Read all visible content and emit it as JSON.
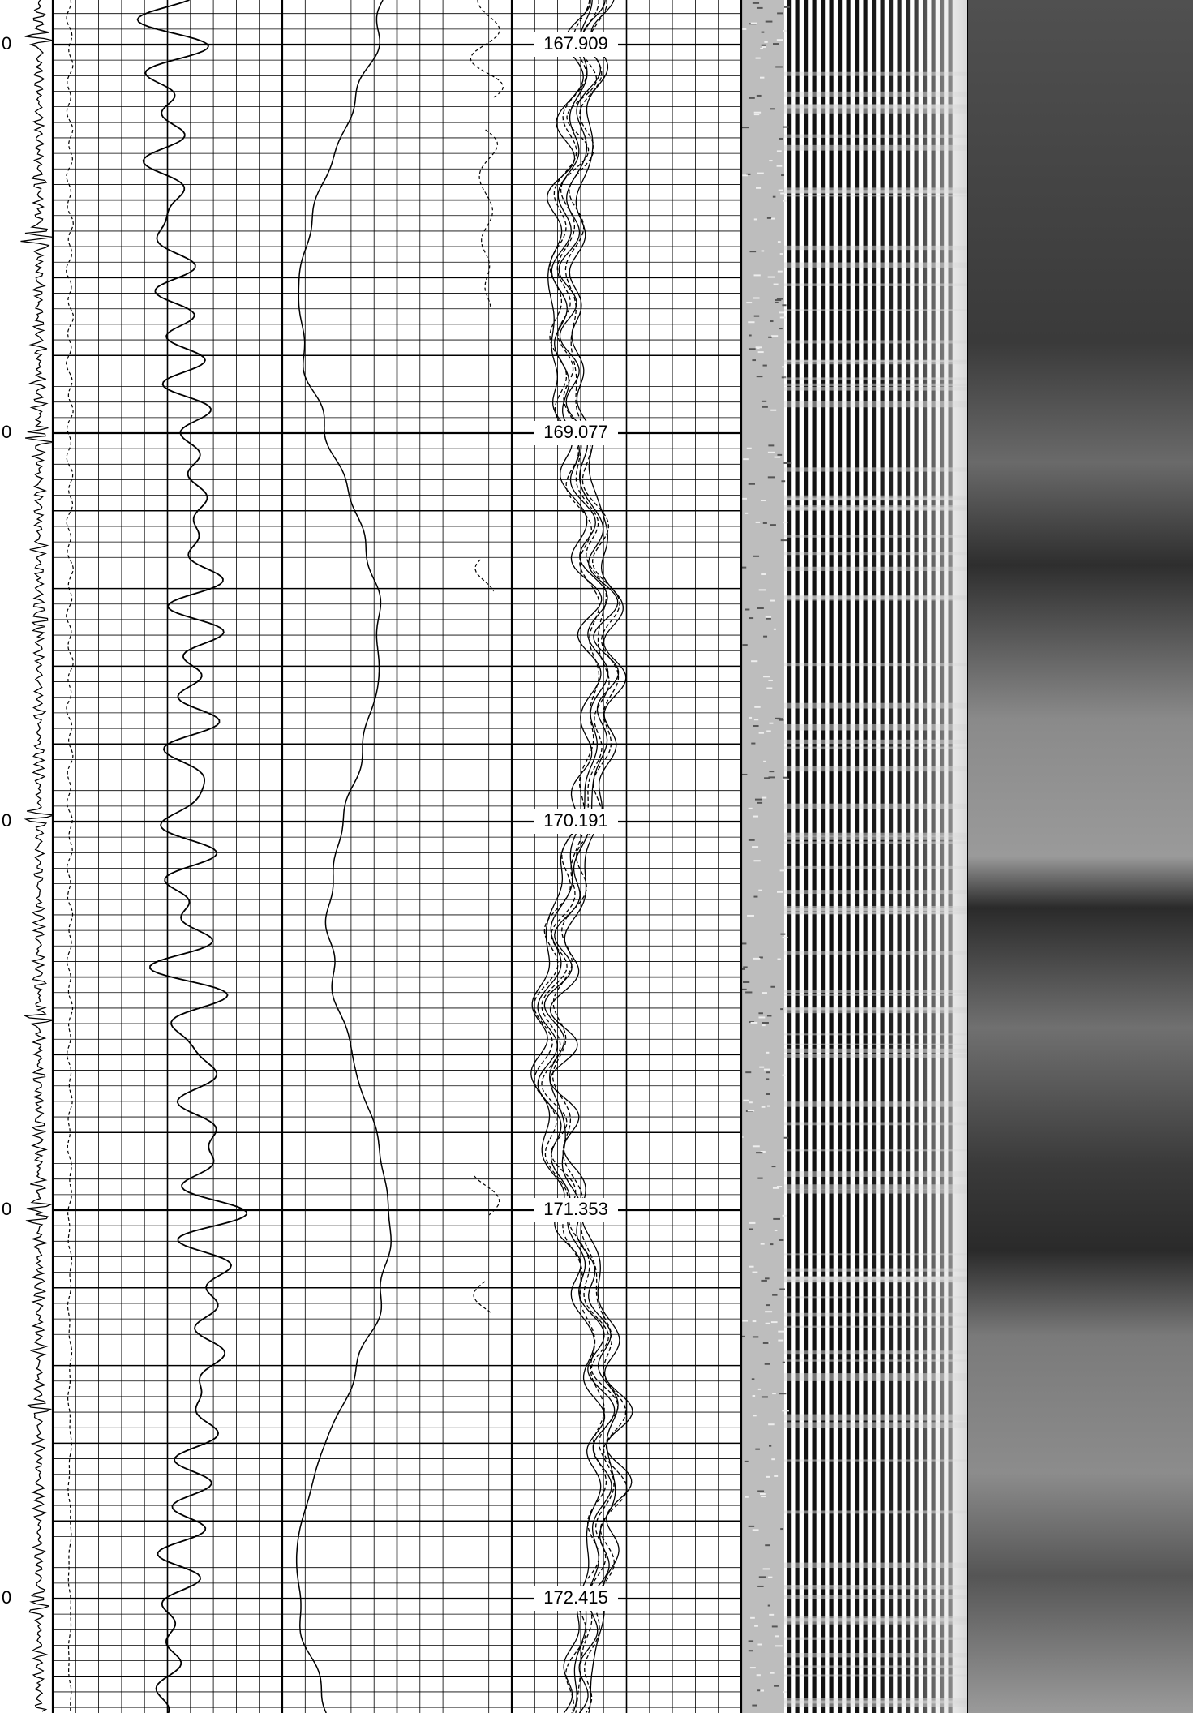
{
  "depth_markers": [
    {
      "zero": "0",
      "depth": "167.909"
    },
    {
      "zero": "0",
      "depth": "169.077"
    },
    {
      "zero": "0",
      "depth": "170.191"
    },
    {
      "zero": "0",
      "depth": "171.353"
    },
    {
      "zero": "0",
      "depth": "172.415"
    }
  ]
}
